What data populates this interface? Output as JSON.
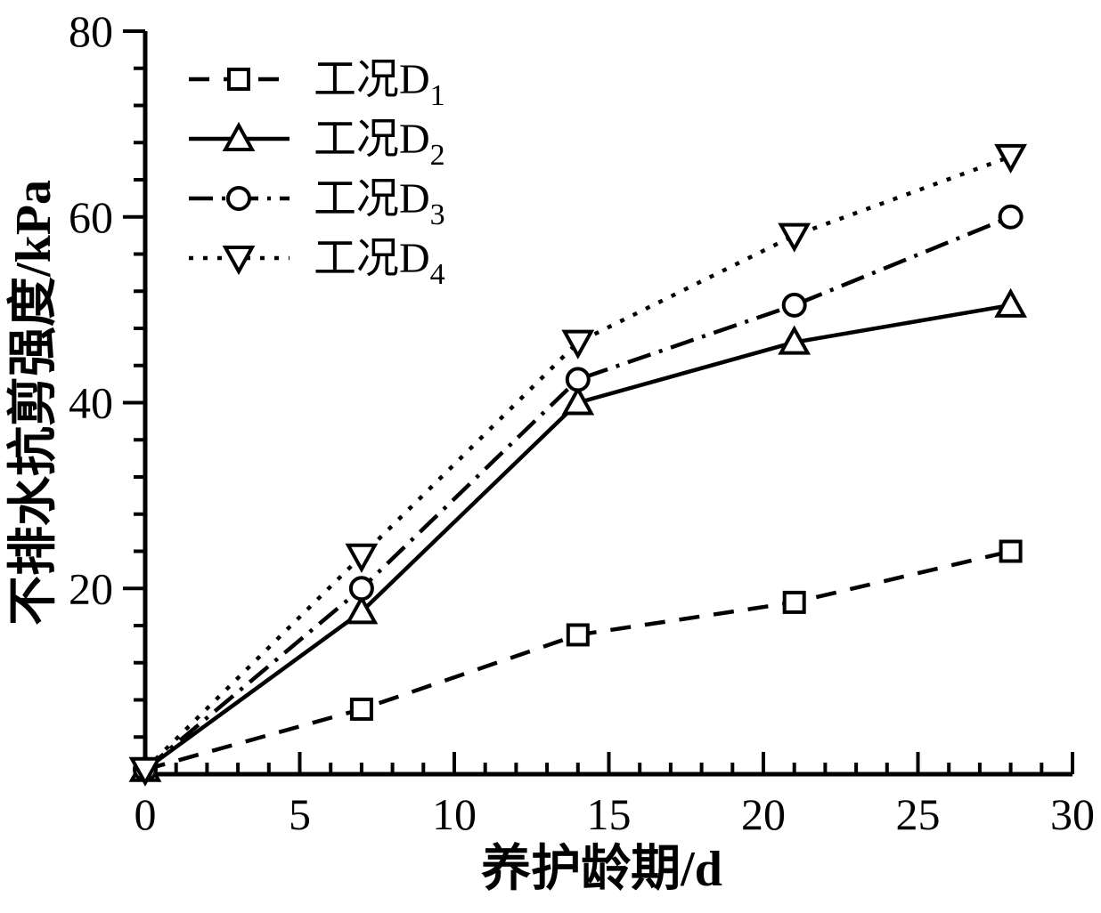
{
  "figure": {
    "background": "#ffffff",
    "ink": "#000000"
  },
  "chart_data": {
    "type": "line",
    "x": [
      0,
      7,
      14,
      21,
      28
    ],
    "series": [
      {
        "name": "工况D",
        "name_sub": "1",
        "marker": "square",
        "line": "dashed",
        "values": [
          0.5,
          7,
          15,
          18.5,
          24
        ]
      },
      {
        "name": "工况D",
        "name_sub": "2",
        "marker": "triangle-up",
        "line": "solid",
        "values": [
          0.5,
          17.5,
          40,
          46.5,
          50.5
        ]
      },
      {
        "name": "工况D",
        "name_sub": "3",
        "marker": "circle",
        "line": "dashdot",
        "values": [
          0.5,
          20,
          42.5,
          50.5,
          60
        ]
      },
      {
        "name": "工况D",
        "name_sub": "4",
        "marker": "triangle-down",
        "line": "dotted",
        "values": [
          0.5,
          23.5,
          46.5,
          58,
          66.5
        ]
      }
    ],
    "title": "",
    "xlabel": "养护龄期/d",
    "ylabel": "不排水抗剪强度/kPa",
    "xlim": [
      0,
      30
    ],
    "ylim": [
      0,
      80
    ],
    "x_major_step": 5,
    "x_minor_step": 1,
    "y_major_step": 20,
    "y_minor_step": 4,
    "x_tick_labels": [
      "0",
      "5",
      "10",
      "15",
      "20",
      "25",
      "30"
    ],
    "x_tick_values": [
      0,
      5,
      10,
      15,
      20,
      25,
      30
    ],
    "y_tick_labels": [
      "20",
      "40",
      "60",
      "80"
    ],
    "y_tick_values": [
      20,
      40,
      60,
      80
    ],
    "grid": false,
    "legend_position": "top-left",
    "line_color": "#000000",
    "marker_fill": "#ffffff"
  }
}
